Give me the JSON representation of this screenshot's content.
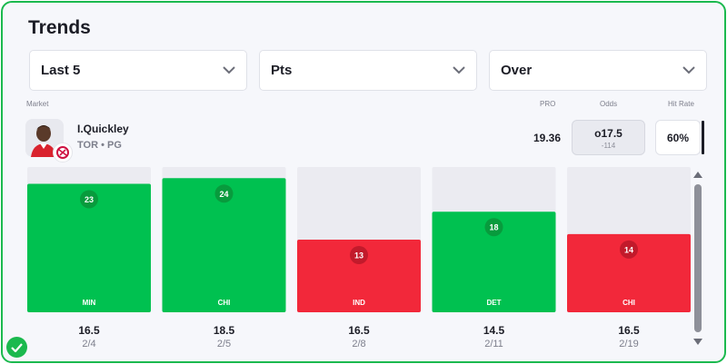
{
  "title": "Trends",
  "filters": [
    {
      "label": "Last 5"
    },
    {
      "label": "Pts"
    },
    {
      "label": "Over"
    }
  ],
  "columns": {
    "market": "Market",
    "pro": "PRO",
    "odds": "Odds",
    "hit_rate": "Hit Rate"
  },
  "player": {
    "name": "I.Quickley",
    "team_pos": "TOR • PG"
  },
  "pro_value": "19.36",
  "odds": {
    "line": "o17.5",
    "price": "-114"
  },
  "hit_rate": "60%",
  "colors": {
    "hit": "#00c150",
    "miss": "#f2283a",
    "empty": "#ebebf1",
    "badge_hit": "#089b3d",
    "badge_miss": "#c21a2b"
  },
  "chart_data": {
    "type": "bar",
    "categories": [
      "MIN",
      "CHI",
      "IND",
      "DET",
      "CHI"
    ],
    "values": [
      23,
      24,
      13,
      18,
      14
    ],
    "lines": [
      "16.5",
      "18.5",
      "16.5",
      "14.5",
      "16.5"
    ],
    "dates": [
      "2/4",
      "2/5",
      "2/8",
      "2/11",
      "2/19"
    ],
    "outcomes": [
      "hit",
      "hit",
      "miss",
      "hit",
      "miss"
    ],
    "ylim": [
      0,
      26
    ]
  }
}
